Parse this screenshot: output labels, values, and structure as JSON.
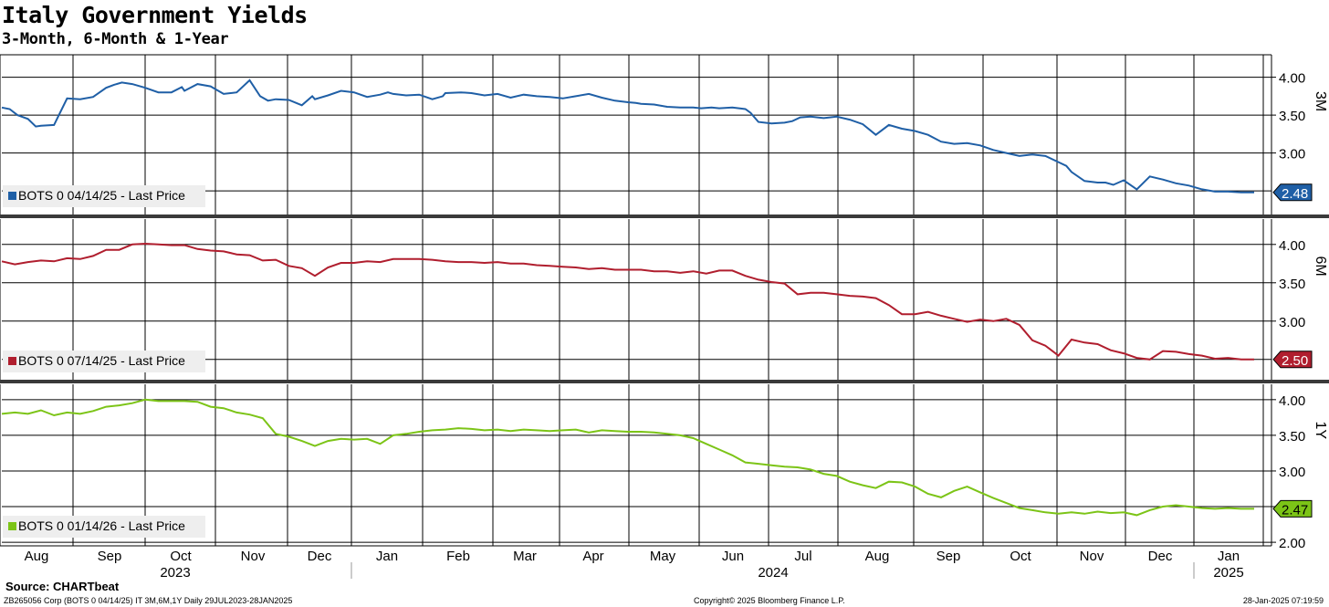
{
  "header": {
    "title": "Italy Government Yields",
    "subtitle": "3-Month, 6-Month & 1-Year"
  },
  "footer": {
    "source": "Source: CHARTbeat",
    "ticker_info": "ZB265056 Corp (BOTS 0 04/14/25) IT 3M,6M,1Y  Daily 29JUL2023-28JAN2025",
    "copyright": "Copyright© 2025 Bloomberg Finance L.P.",
    "timestamp": "28-Jan-2025 07:19:59"
  },
  "chart_data": [
    {
      "type": "line",
      "panel_label": "3M",
      "legend": "BOTS 0 04/14/25 - Last Price",
      "last_value_label": "2.48",
      "color": "#1f5fa6",
      "ylim": [
        2.2,
        4.2
      ],
      "yticks": [
        "4.00",
        "3.50",
        "3.00"
      ],
      "x": [
        0,
        0.3,
        0.6,
        1.0,
        1.3,
        1.5,
        2.0,
        2.5,
        3.0,
        3.5,
        4.0,
        4.3,
        4.6,
        5.0,
        5.5,
        6.0,
        6.5,
        6.9,
        7.0,
        7.5,
        8.0,
        8.5,
        9.0,
        9.5,
        9.9,
        10.2,
        10.5,
        11.0,
        11.5,
        11.9,
        12.0,
        12.5,
        13.0,
        13.5,
        14.0,
        14.5,
        14.8,
        15.0,
        15.5,
        16.0,
        16.5,
        16.9,
        17.0,
        17.6,
        18.0,
        18.5,
        19.0,
        19.5,
        20.0,
        20.5,
        21.0,
        21.5,
        22.0,
        22.5,
        23.0,
        23.5,
        24.0,
        24.3,
        24.5,
        25.0,
        25.5,
        26.0,
        26.5,
        26.8,
        27.2,
        27.5,
        28.0,
        28.5,
        28.7,
        29.0,
        29.5,
        30.0,
        30.3,
        30.6,
        31.0,
        31.5,
        32.0,
        32.5,
        33.0,
        33.5,
        34.0,
        34.5,
        35.0,
        35.5,
        36.0,
        36.5,
        37.0,
        37.5,
        38.0,
        38.5,
        39.0,
        39.5,
        40.0,
        40.5,
        40.8,
        41.0,
        41.5,
        42.0,
        42.3,
        42.6,
        43.0,
        43.5,
        44.0,
        44.5,
        45.0,
        45.5,
        46.0,
        46.5,
        47.0,
        47.5,
        48.0
      ],
      "y": [
        3.6,
        3.58,
        3.5,
        3.45,
        3.35,
        3.36,
        3.37,
        3.72,
        3.71,
        3.74,
        3.86,
        3.9,
        3.93,
        3.91,
        3.86,
        3.8,
        3.8,
        3.87,
        3.82,
        3.91,
        3.88,
        3.78,
        3.8,
        3.96,
        3.75,
        3.69,
        3.71,
        3.7,
        3.63,
        3.75,
        3.71,
        3.76,
        3.82,
        3.8,
        3.74,
        3.77,
        3.8,
        3.78,
        3.76,
        3.77,
        3.71,
        3.75,
        3.79,
        3.8,
        3.79,
        3.76,
        3.78,
        3.73,
        3.77,
        3.75,
        3.74,
        3.72,
        3.75,
        3.78,
        3.73,
        3.69,
        3.67,
        3.66,
        3.65,
        3.64,
        3.61,
        3.6,
        3.6,
        3.59,
        3.6,
        3.59,
        3.6,
        3.58,
        3.53,
        3.41,
        3.39,
        3.4,
        3.42,
        3.47,
        3.48,
        3.46,
        3.48,
        3.44,
        3.38,
        3.24,
        3.37,
        3.32,
        3.29,
        3.24,
        3.15,
        3.12,
        3.13,
        3.1,
        3.04,
        3.0,
        2.96,
        2.98,
        2.96,
        2.88,
        2.83,
        2.75,
        2.63,
        2.61,
        2.61,
        2.58,
        2.64,
        2.52,
        2.69,
        2.65,
        2.6,
        2.57,
        2.52,
        2.49,
        2.49,
        2.48,
        2.48
      ]
    },
    {
      "type": "line",
      "panel_label": "6M",
      "legend": "BOTS 0 07/14/25 - Last Price",
      "last_value_label": "2.50",
      "color": "#b01e2e",
      "ylim": [
        2.2,
        4.2
      ],
      "yticks": [
        "4.00",
        "3.50",
        "3.00"
      ],
      "x": [
        0,
        0.5,
        1.0,
        1.5,
        2.0,
        2.5,
        3.0,
        3.5,
        4.0,
        4.5,
        5.0,
        5.5,
        6.0,
        6.5,
        7.0,
        7.5,
        8.0,
        8.5,
        9.0,
        9.5,
        10.0,
        10.5,
        11.0,
        11.5,
        12.0,
        12.5,
        13.0,
        13.5,
        14.0,
        14.5,
        15.0,
        15.5,
        16.0,
        16.5,
        17.0,
        17.5,
        18.0,
        18.5,
        19.0,
        19.5,
        20.0,
        20.5,
        21.0,
        21.5,
        22.0,
        22.5,
        23.0,
        23.5,
        24.0,
        24.5,
        25.0,
        25.5,
        26.0,
        26.5,
        27.0,
        27.5,
        28.0,
        28.5,
        29.0,
        29.5,
        30.0,
        30.5,
        31.0,
        31.5,
        32.0,
        32.5,
        33.0,
        33.5,
        34.0,
        34.5,
        35.0,
        35.5,
        36.0,
        36.5,
        37.0,
        37.5,
        38.0,
        38.5,
        39.0,
        39.5,
        40.0,
        40.5,
        41.0,
        41.5,
        42.0,
        42.5,
        43.0,
        43.5,
        44.0,
        44.5,
        45.0,
        45.5,
        46.0,
        46.5,
        47.0,
        47.5,
        48.0
      ],
      "y": [
        3.78,
        3.74,
        3.77,
        3.79,
        3.78,
        3.82,
        3.81,
        3.85,
        3.93,
        3.93,
        4.0,
        4.01,
        4.0,
        3.99,
        3.99,
        3.94,
        3.92,
        3.91,
        3.87,
        3.86,
        3.79,
        3.8,
        3.72,
        3.69,
        3.59,
        3.7,
        3.76,
        3.76,
        3.78,
        3.77,
        3.81,
        3.81,
        3.81,
        3.8,
        3.78,
        3.77,
        3.77,
        3.76,
        3.77,
        3.75,
        3.75,
        3.73,
        3.72,
        3.71,
        3.7,
        3.68,
        3.69,
        3.67,
        3.67,
        3.67,
        3.65,
        3.65,
        3.63,
        3.65,
        3.62,
        3.66,
        3.66,
        3.59,
        3.54,
        3.51,
        3.49,
        3.35,
        3.37,
        3.37,
        3.35,
        3.33,
        3.32,
        3.3,
        3.21,
        3.09,
        3.09,
        3.12,
        3.07,
        3.03,
        2.99,
        3.02,
        3.0,
        3.03,
        2.95,
        2.75,
        2.68,
        2.55,
        2.76,
        2.72,
        2.7,
        2.62,
        2.58,
        2.52,
        2.5,
        2.61,
        2.6,
        2.57,
        2.55,
        2.51,
        2.52,
        2.5,
        2.5
      ]
    },
    {
      "type": "line",
      "panel_label": "1Y",
      "legend": "BOTS 0 01/14/26 - Last Price",
      "last_value_label": "2.47",
      "color": "#7cc417",
      "ylim": [
        1.95,
        4.1
      ],
      "yticks": [
        "4.00",
        "3.50",
        "3.00",
        "2.50",
        "2.00"
      ],
      "x": [
        0,
        0.5,
        1.0,
        1.5,
        2.0,
        2.5,
        3.0,
        3.5,
        4.0,
        4.5,
        5.0,
        5.5,
        6.0,
        6.5,
        7.0,
        7.5,
        8.0,
        8.5,
        9.0,
        9.5,
        10.0,
        10.5,
        11.0,
        11.5,
        12.0,
        12.5,
        13.0,
        13.5,
        14.0,
        14.5,
        15.0,
        15.5,
        16.0,
        16.5,
        17.0,
        17.5,
        18.0,
        18.5,
        19.0,
        19.5,
        20.0,
        20.5,
        21.0,
        21.5,
        22.0,
        22.5,
        23.0,
        23.5,
        24.0,
        24.5,
        25.0,
        25.5,
        26.0,
        26.5,
        27.0,
        27.5,
        28.0,
        28.5,
        29.0,
        29.5,
        30.0,
        30.5,
        31.0,
        31.5,
        32.0,
        32.5,
        33.0,
        33.5,
        34.0,
        34.5,
        35.0,
        35.5,
        36.0,
        36.5,
        37.0,
        37.5,
        38.0,
        38.5,
        39.0,
        39.5,
        40.0,
        40.5,
        41.0,
        41.5,
        42.0,
        42.5,
        43.0,
        43.5,
        44.0,
        44.5,
        45.0,
        45.5,
        46.0,
        46.5,
        47.0,
        47.5,
        48.0
      ],
      "y": [
        3.8,
        3.82,
        3.8,
        3.85,
        3.78,
        3.82,
        3.8,
        3.84,
        3.9,
        3.92,
        3.95,
        4.0,
        3.98,
        3.98,
        3.98,
        3.97,
        3.9,
        3.88,
        3.82,
        3.79,
        3.74,
        3.52,
        3.48,
        3.42,
        3.35,
        3.42,
        3.45,
        3.44,
        3.45,
        3.38,
        3.5,
        3.52,
        3.55,
        3.57,
        3.58,
        3.6,
        3.59,
        3.57,
        3.58,
        3.56,
        3.58,
        3.57,
        3.56,
        3.57,
        3.58,
        3.54,
        3.57,
        3.56,
        3.55,
        3.55,
        3.54,
        3.52,
        3.5,
        3.46,
        3.38,
        3.3,
        3.22,
        3.12,
        3.1,
        3.08,
        3.06,
        3.05,
        3.02,
        2.96,
        2.93,
        2.85,
        2.8,
        2.76,
        2.85,
        2.84,
        2.78,
        2.68,
        2.63,
        2.72,
        2.78,
        2.7,
        2.62,
        2.55,
        2.48,
        2.45,
        2.42,
        2.4,
        2.42,
        2.4,
        2.43,
        2.41,
        2.42,
        2.38,
        2.45,
        2.5,
        2.52,
        2.5,
        2.48,
        2.47,
        2.48,
        2.47,
        2.47
      ]
    }
  ],
  "x_axis": {
    "months": [
      "Aug",
      "Sep",
      "Oct",
      "Nov",
      "Dec",
      "Jan",
      "Feb",
      "Mar",
      "Apr",
      "May",
      "Jun",
      "Jul",
      "Aug",
      "Sep",
      "Oct",
      "Nov",
      "Dec",
      "Jan"
    ],
    "years": [
      "2023",
      "2024",
      "2025"
    ]
  }
}
